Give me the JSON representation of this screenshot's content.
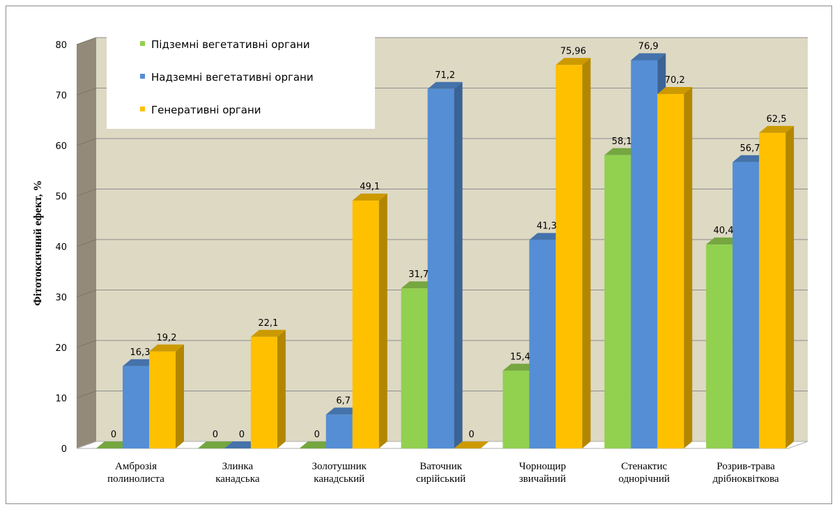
{
  "chart_data": {
    "type": "bar",
    "title": "",
    "ylabel": "Фітотоксичний ефект, %",
    "xlabel": "",
    "ylim": [
      0,
      80
    ],
    "yticks": [
      0,
      10,
      20,
      30,
      40,
      50,
      60,
      70,
      80
    ],
    "grid": true,
    "legend_position": "top-left",
    "categories": [
      [
        "Амброзія",
        "полинолиста"
      ],
      [
        "Злинка",
        "канадська"
      ],
      [
        "Золотушник",
        "канадський"
      ],
      [
        "Ваточник",
        "сирійський"
      ],
      [
        "Чорнощир",
        "звичайний"
      ],
      [
        "Стенактис",
        "однорічний"
      ],
      [
        "Розрив-трава",
        "дрібноквіткова"
      ]
    ],
    "series": [
      {
        "name": "Підземні вегетативні органи",
        "color": "#92d050",
        "values": [
          0,
          0,
          0,
          31.7,
          15.4,
          58.1,
          40.4
        ],
        "labels": [
          "0",
          "0",
          "0",
          "31,7",
          "15,4",
          "58,1",
          "40,4"
        ]
      },
      {
        "name": "Надземні вегетативні органи",
        "color": "#558ed5",
        "values": [
          16.3,
          0,
          6.7,
          71.2,
          41.3,
          76.9,
          56.7
        ],
        "labels": [
          "16,3",
          "0",
          "6,7",
          "71,2",
          "41,3",
          "76,9",
          "56,7"
        ]
      },
      {
        "name": "Генеративні органи",
        "color": "#ffc000",
        "values": [
          19.2,
          22.1,
          49.1,
          0,
          75.96,
          70.2,
          62.5
        ],
        "labels": [
          "19,2",
          "22,1",
          "49,1",
          "0",
          "75,96",
          "70,2",
          "62,5"
        ]
      }
    ]
  }
}
